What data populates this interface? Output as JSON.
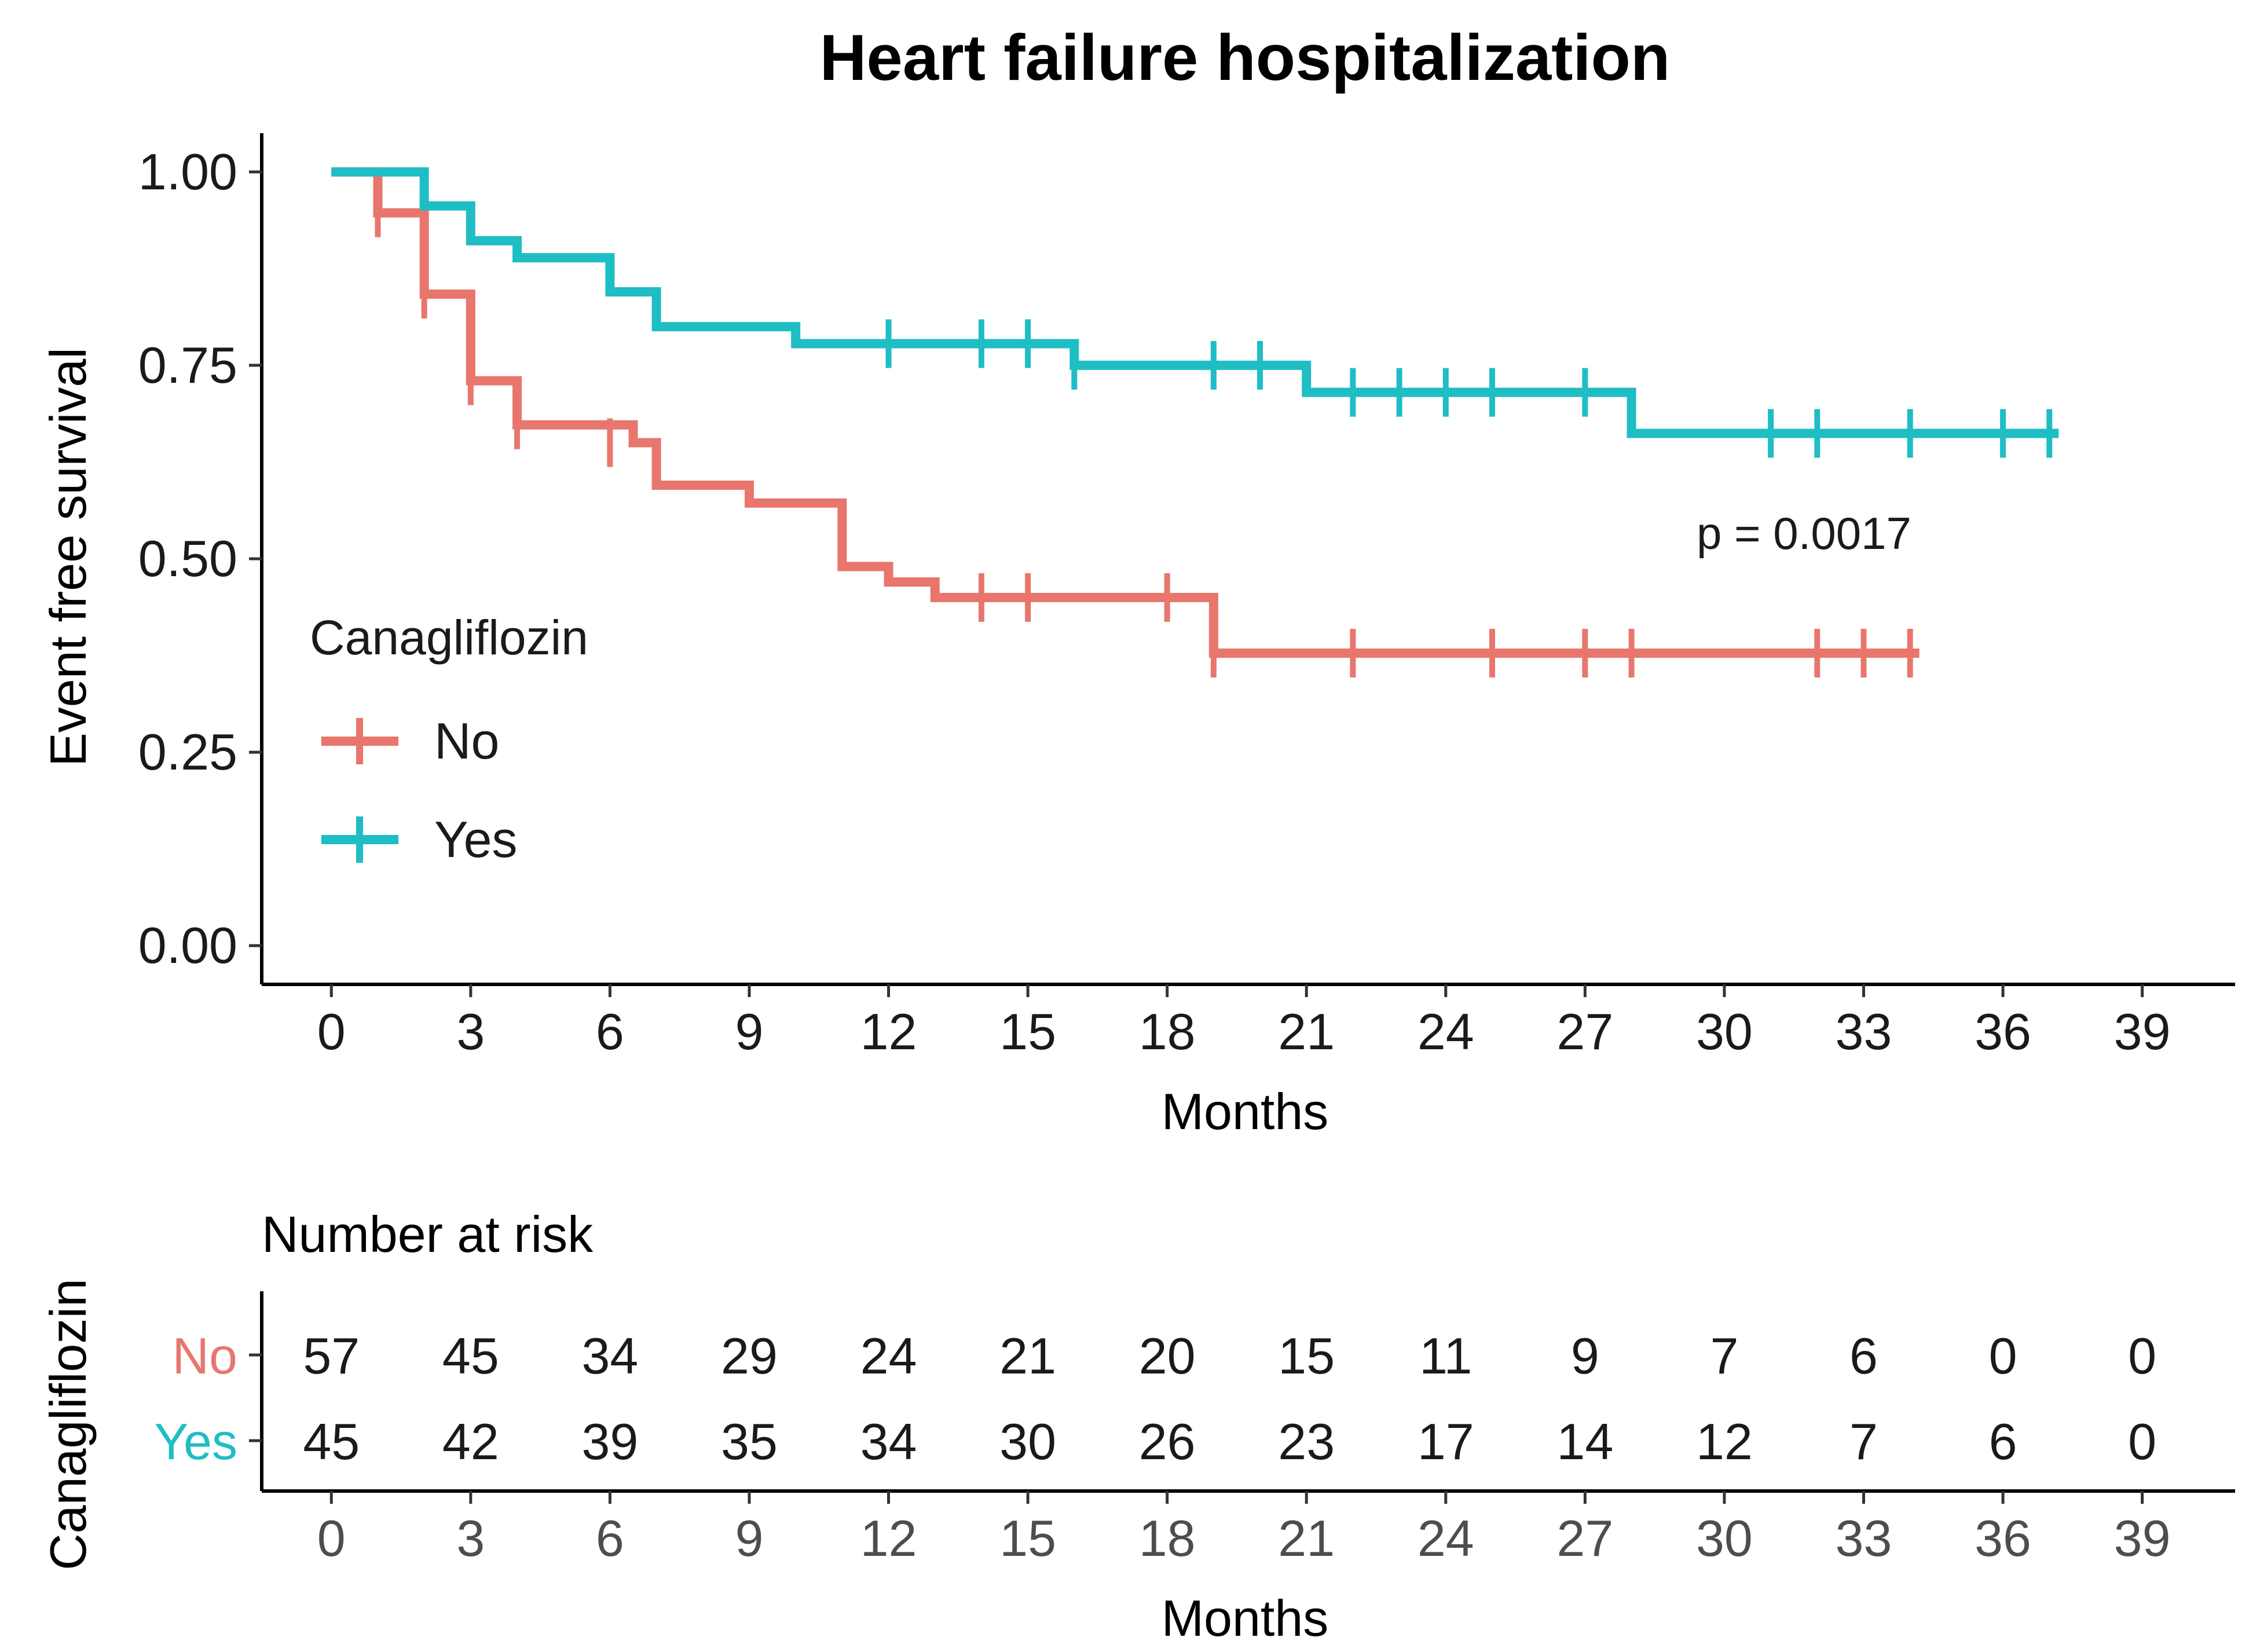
{
  "chart_data": {
    "type": "line",
    "subtype": "kaplan-meier step curve with number-at-risk table",
    "title": "Heart failure hospitalization",
    "xlabel": "Months",
    "ylabel": "Event free survival",
    "xlim": [
      -1.5,
      41
    ],
    "ylim": [
      -0.05,
      1.05
    ],
    "x_ticks": [
      0,
      3,
      6,
      9,
      12,
      15,
      18,
      21,
      24,
      27,
      30,
      33,
      36,
      39
    ],
    "y_ticks": [
      0.0,
      0.25,
      0.5,
      0.75,
      1.0
    ],
    "y_tick_labels": [
      "0.00",
      "0.25",
      "0.50",
      "0.75",
      "1.00"
    ],
    "legend": {
      "title": "Canagliflozin",
      "position": "middle-left inside"
    },
    "annotation": "p = 0.0017",
    "series": [
      {
        "name": "No",
        "color": "#E8766D",
        "steps": [
          [
            0,
            1.0
          ],
          [
            1,
            0.947
          ],
          [
            2,
            0.842
          ],
          [
            3,
            0.73
          ],
          [
            4,
            0.673
          ],
          [
            6.5,
            0.65
          ],
          [
            7,
            0.595
          ],
          [
            9,
            0.572
          ],
          [
            11,
            0.49
          ],
          [
            12,
            0.47
          ],
          [
            13,
            0.45
          ],
          [
            19,
            0.378
          ],
          [
            34.2,
            0.378
          ]
        ],
        "censor_x": [
          1,
          2,
          3,
          4,
          6,
          14,
          15,
          18,
          19,
          22,
          25,
          27,
          28,
          32,
          33,
          34
        ],
        "censor_y": [
          0.947,
          0.842,
          0.73,
          0.673,
          0.65,
          0.45,
          0.45,
          0.45,
          0.378,
          0.378,
          0.378,
          0.378,
          0.378,
          0.378,
          0.378,
          0.378
        ]
      },
      {
        "name": "Yes",
        "color": "#1FBDC4",
        "steps": [
          [
            0,
            1.0
          ],
          [
            2,
            0.956
          ],
          [
            3,
            0.911
          ],
          [
            4,
            0.889
          ],
          [
            6,
            0.845
          ],
          [
            7,
            0.8
          ],
          [
            10,
            0.778
          ],
          [
            16,
            0.75
          ],
          [
            21,
            0.715
          ],
          [
            28,
            0.662
          ],
          [
            37.2,
            0.662
          ]
        ],
        "censor_x": [
          12,
          14,
          15,
          16,
          19,
          20,
          22,
          23,
          24,
          25,
          27,
          31,
          32,
          34,
          36,
          37
        ],
        "censor_y": [
          0.778,
          0.778,
          0.778,
          0.75,
          0.75,
          0.75,
          0.715,
          0.715,
          0.715,
          0.715,
          0.715,
          0.662,
          0.662,
          0.662,
          0.662,
          0.662
        ]
      }
    ],
    "risk_table": {
      "title": "Number at risk",
      "ylabel": "Canagliflozin",
      "xlabel": "Months",
      "times": [
        0,
        3,
        6,
        9,
        12,
        15,
        18,
        21,
        24,
        27,
        30,
        33,
        36,
        39
      ],
      "rows": [
        {
          "name": "No",
          "color": "#E8766D",
          "counts": [
            57,
            45,
            34,
            29,
            24,
            21,
            20,
            15,
            11,
            9,
            7,
            6,
            0,
            0
          ]
        },
        {
          "name": "Yes",
          "color": "#1FBDC4",
          "counts": [
            45,
            42,
            39,
            35,
            34,
            30,
            26,
            23,
            17,
            14,
            12,
            7,
            6,
            0
          ]
        }
      ]
    }
  }
}
